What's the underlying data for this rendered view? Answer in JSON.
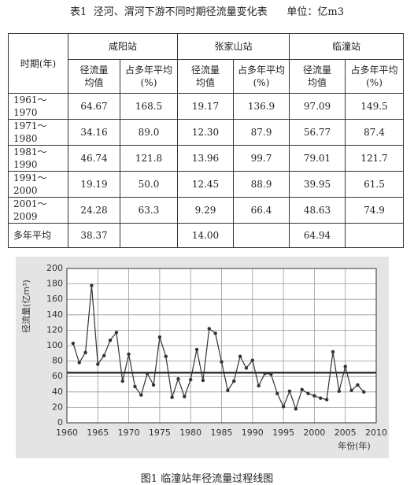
{
  "title": "表1  泾河、渭河下游不同时期径流量变化表      单位：亿m3",
  "table": {
    "header": {
      "period": "时期(年)",
      "stations": [
        "咸阳站",
        "张家山站",
        "临潼站"
      ],
      "sub": [
        "径流量\n均值",
        "占多年平均\n(%)",
        "径流量\n均值",
        "占多年平均\n(%)",
        "径流量\n均值",
        "占多年平均\n(%)"
      ]
    },
    "rows": [
      [
        "1961～1970",
        "64.67",
        "168.5",
        "19.17",
        "136.9",
        "97.09",
        "149.5"
      ],
      [
        "1971～1980",
        "34.16",
        "89.0",
        "12.30",
        "87.9",
        "56.77",
        "87.4"
      ],
      [
        "1981～1990",
        "46.74",
        "121.8",
        "13.96",
        "99.7",
        "79.01",
        "121.7"
      ],
      [
        "1991～2000",
        "19.19",
        "50.0",
        "12.45",
        "88.9",
        "39.95",
        "61.5"
      ],
      [
        "2001～2009",
        "24.28",
        "63.3",
        "9.29",
        "66.4",
        "48.63",
        "74.9"
      ],
      [
        "多年平均",
        "38.37",
        null,
        "14.00",
        null,
        "64.94",
        null
      ]
    ]
  },
  "chart_data": {
    "type": "line",
    "y_label": "径流量(亿m³)",
    "x_label": "年份(年)",
    "x": [
      1961,
      1962,
      1963,
      1964,
      1965,
      1966,
      1967,
      1968,
      1969,
      1970,
      1971,
      1972,
      1973,
      1974,
      1975,
      1976,
      1977,
      1978,
      1979,
      1980,
      1981,
      1982,
      1983,
      1984,
      1985,
      1986,
      1987,
      1988,
      1989,
      1990,
      1991,
      1992,
      1993,
      1994,
      1995,
      1996,
      1997,
      1998,
      1999,
      2000,
      2001,
      2002,
      2003,
      2004,
      2005,
      2006,
      2007,
      2008
    ],
    "values": [
      103,
      78,
      91,
      178,
      76,
      87,
      107,
      117,
      54,
      89,
      47,
      36,
      64,
      49,
      111,
      86,
      33,
      57,
      34,
      56,
      95,
      55,
      122,
      116,
      79,
      42,
      54,
      86,
      71,
      81,
      48,
      64,
      63,
      38,
      21,
      41,
      18,
      43,
      38,
      35,
      32,
      30,
      92,
      41,
      73,
      42,
      49,
      40
    ],
    "color": "#333333",
    "reference_line": 64.94,
    "xlim": [
      1960,
      2010
    ],
    "xticks": [
      1960,
      1965,
      1970,
      1975,
      1980,
      1985,
      1990,
      1995,
      2000,
      2005,
      2010
    ],
    "ylim": [
      0,
      200
    ],
    "yticks": [
      0,
      20,
      40,
      60,
      80,
      100,
      120,
      140,
      160,
      180,
      200
    ],
    "grid": true
  },
  "caption": "图1  临潼站年径流量过程线图"
}
